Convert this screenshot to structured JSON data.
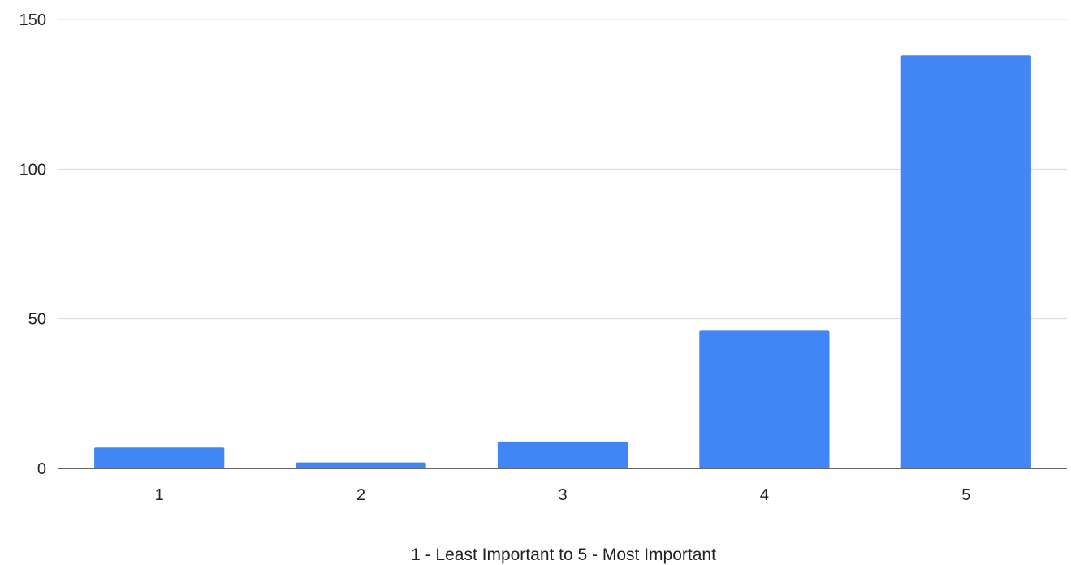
{
  "chart_data": {
    "type": "bar",
    "categories": [
      "1",
      "2",
      "3",
      "4",
      "5"
    ],
    "values": [
      7,
      2,
      9,
      46,
      138
    ],
    "title": "",
    "xlabel": "1 - Least Important to 5 - Most Important",
    "ylabel": "",
    "ylim": [
      0,
      150
    ],
    "yticks": [
      "0",
      "50",
      "100",
      "150"
    ],
    "grid": true,
    "legend": "none",
    "bar_color": "#4285f4",
    "grid_color": "#d9d9d9",
    "axis_color": "#333333"
  }
}
